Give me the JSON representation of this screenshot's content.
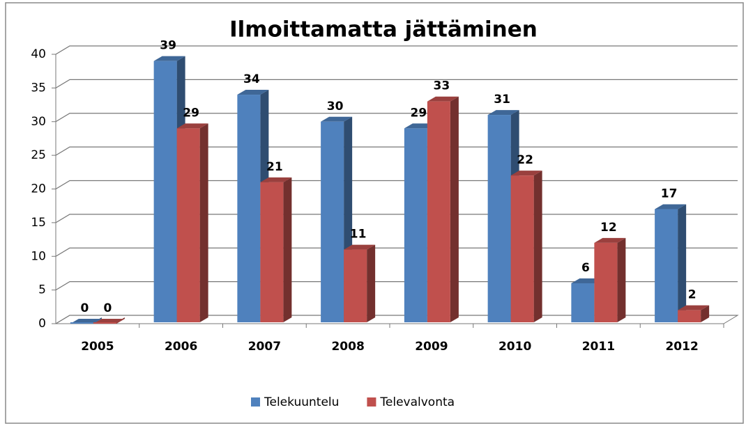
{
  "chart_data": {
    "type": "bar3d",
    "title": "Ilmoittamatta jättäminen",
    "categories": [
      "2005",
      "2006",
      "2007",
      "2008",
      "2009",
      "2010",
      "2011",
      "2012"
    ],
    "series": [
      {
        "name": "Telekuuntelu",
        "color": "#4f81bd",
        "values": [
          0,
          39,
          34,
          30,
          29,
          31,
          6,
          17
        ]
      },
      {
        "name": "Televalvonta",
        "color": "#c0504d",
        "values": [
          0,
          29,
          21,
          11,
          33,
          22,
          12,
          2
        ]
      }
    ],
    "ylim": [
      0,
      40
    ],
    "yticks": [
      0,
      5,
      10,
      15,
      20,
      25,
      30,
      35,
      40
    ],
    "grid": true,
    "legend": "bottom"
  }
}
